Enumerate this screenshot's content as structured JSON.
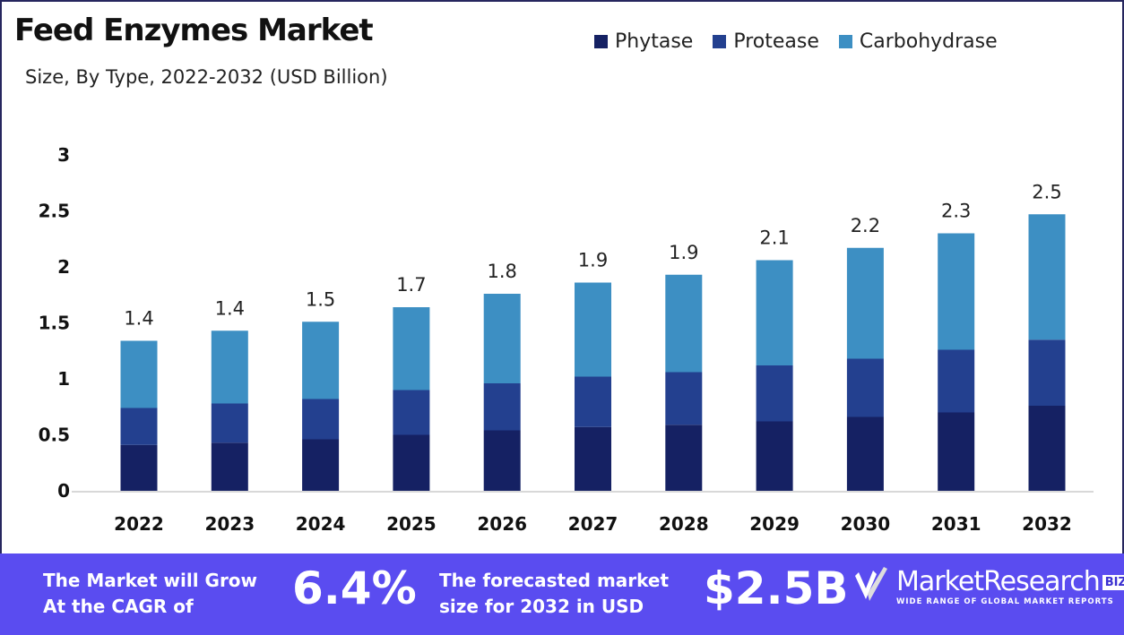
{
  "chart_data": {
    "type": "bar",
    "stacked": true,
    "title": "Feed Enzymes Market",
    "subtitle": "Size, By Type, 2022-2032 (USD Billion)",
    "xlabel": "",
    "ylabel": "",
    "ylim": [
      0,
      3
    ],
    "yticks": [
      "0",
      "0.5",
      "1",
      "1.5",
      "2",
      "2.5",
      "3"
    ],
    "grid": false,
    "legend_position": "top-right",
    "categories": [
      "2022",
      "2023",
      "2024",
      "2025",
      "2026",
      "2027",
      "2028",
      "2029",
      "2030",
      "2031",
      "2032"
    ],
    "series": [
      {
        "name": "Phytase",
        "color": "#152163",
        "values": [
          0.41,
          0.43,
          0.46,
          0.5,
          0.54,
          0.57,
          0.59,
          0.62,
          0.66,
          0.7,
          0.76
        ]
      },
      {
        "name": "Protease",
        "color": "#23408f",
        "values": [
          0.33,
          0.35,
          0.36,
          0.4,
          0.42,
          0.45,
          0.47,
          0.5,
          0.52,
          0.56,
          0.59
        ]
      },
      {
        "name": "Carbohydrase",
        "color": "#3d8fc3",
        "values": [
          0.6,
          0.65,
          0.69,
          0.74,
          0.8,
          0.84,
          0.87,
          0.94,
          0.99,
          1.04,
          1.12
        ]
      }
    ],
    "total_labels": [
      "1.4",
      "1.4",
      "1.5",
      "1.7",
      "1.8",
      "1.9",
      "1.9",
      "2.1",
      "2.2",
      "2.3",
      "2.5"
    ]
  },
  "banner": {
    "cagr_text_1": "The Market will Grow",
    "cagr_text_2": "At the CAGR of",
    "cagr_value": "6.4%",
    "forecast_text_1": "The forecasted market",
    "forecast_text_2": "size for 2032 in USD",
    "forecast_value": "$2.5B",
    "background": "#5a4cf0"
  },
  "logo": {
    "name": "MarketResearch",
    "badge": "BIZ",
    "tagline": "WIDE RANGE OF GLOBAL MARKET REPORTS"
  }
}
